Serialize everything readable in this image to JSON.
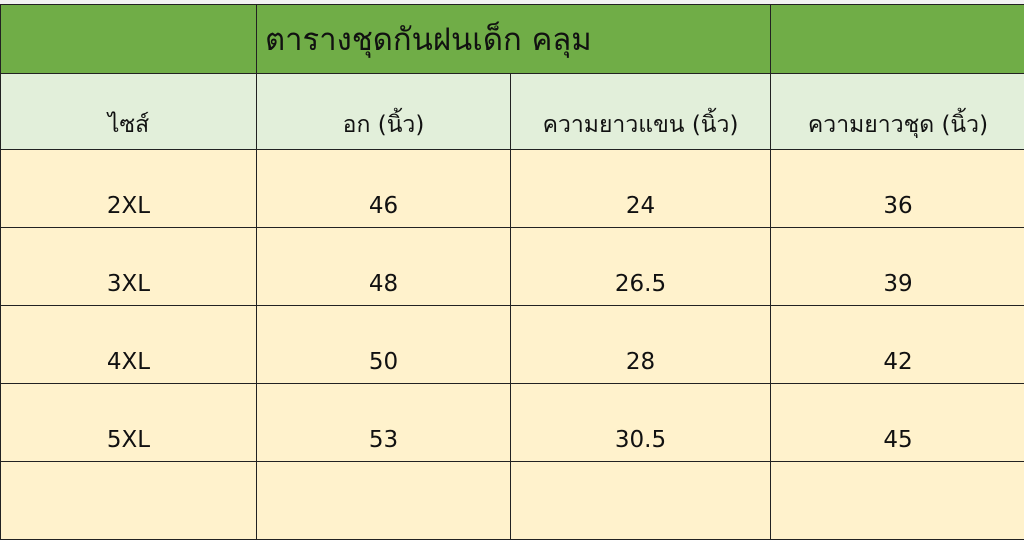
{
  "title": "ตารางชุดกันฝนเด็ก คลุม",
  "colors": {
    "title_bg": "#70ad47",
    "header_bg": "#e2efda",
    "body_bg": "#fff2cc"
  },
  "headers": [
    "ไซส์",
    "อก (นิ้ว)",
    "ความยาวแขน (นิ้ว)",
    "ความยาวชุด (นิ้ว)"
  ],
  "rows": [
    [
      "2XL",
      "46",
      "24",
      "36"
    ],
    [
      "3XL",
      "48",
      "26.5",
      "39"
    ],
    [
      "4XL",
      "50",
      "28",
      "42"
    ],
    [
      "5XL",
      "53",
      "30.5",
      "45"
    ],
    [
      "",
      "",
      "",
      ""
    ]
  ]
}
